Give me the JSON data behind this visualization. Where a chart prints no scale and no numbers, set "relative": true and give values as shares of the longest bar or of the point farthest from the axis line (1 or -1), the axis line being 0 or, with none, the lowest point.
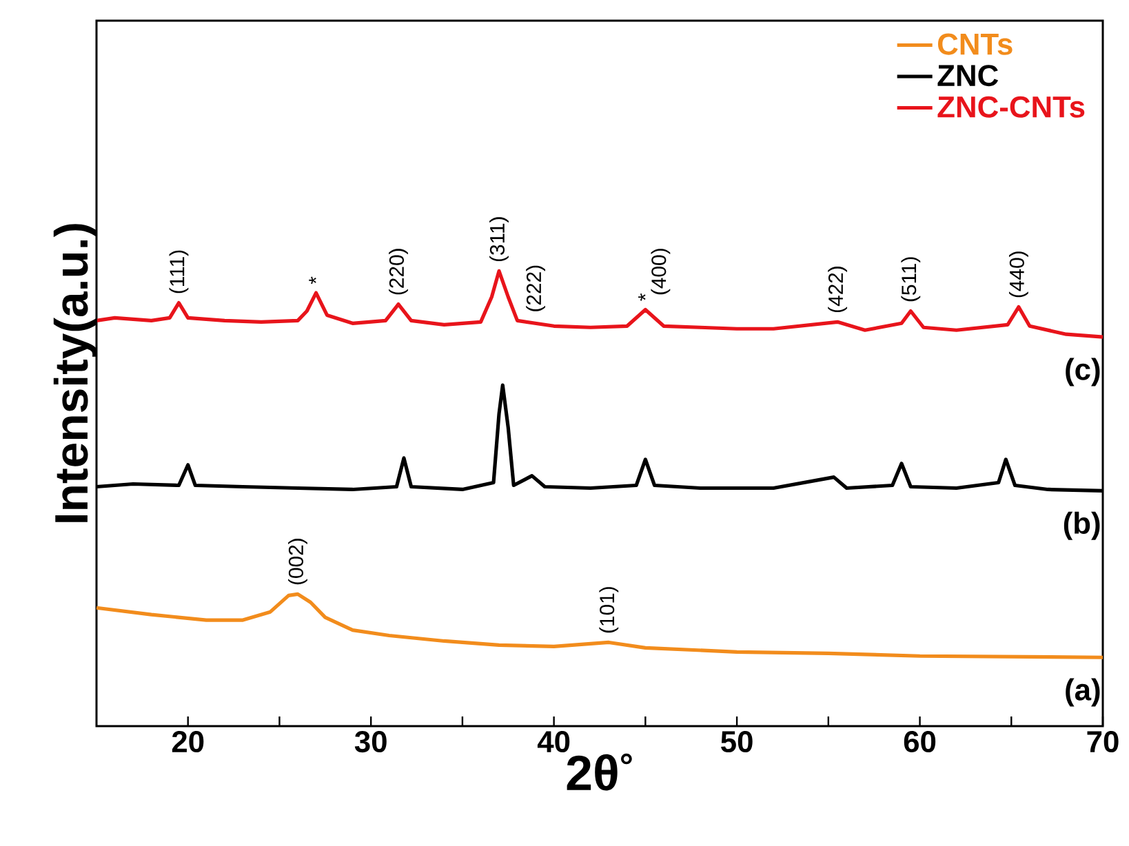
{
  "chart_data": {
    "type": "line",
    "relative": true,
    "xlabel": "2θ$^{°}$",
    "ylabel": "Intensity(a.u.)",
    "xlim": [
      15,
      70
    ],
    "xticks": [
      20,
      {
        "value": 25,
        "label": null
      },
      30,
      {
        "value": 35,
        "label": null
      },
      40,
      {
        "value": 45,
        "label": null
      },
      50,
      {
        "value": 55,
        "label": null
      },
      60,
      {
        "value": 65,
        "label": null
      },
      70
    ],
    "legend": "top right",
    "marker": "none",
    "line_style": "solid",
    "grid": false,
    "series": [
      {
        "name": "CNTs",
        "color": "#f28c1c",
        "x": [
          15,
          18,
          21,
          23,
          24.5,
          25.5,
          26,
          26.7,
          27.5,
          29,
          31,
          34,
          37,
          40,
          43,
          45,
          50,
          55,
          60,
          70
        ],
        "values": [
          0.26,
          0.245,
          0.233,
          0.233,
          0.251,
          0.287,
          0.29,
          0.272,
          0.239,
          0.211,
          0.199,
          0.187,
          0.178,
          0.175,
          0.184,
          0.172,
          0.163,
          0.16,
          0.154,
          0.151
        ]
      },
      {
        "name": "ZNC",
        "color": "#000000",
        "x": [
          15,
          17,
          19.5,
          20,
          20.4,
          23,
          26,
          29,
          31.4,
          31.8,
          32.2,
          35,
          36.7,
          37.0,
          37.2,
          37.5,
          37.8,
          38.8,
          39.5,
          42,
          44.5,
          45,
          45.5,
          48,
          52,
          55.3,
          56,
          58.5,
          59,
          59.5,
          62,
          64.3,
          64.7,
          65.2,
          67,
          70
        ],
        "values": [
          0.526,
          0.532,
          0.529,
          0.574,
          0.529,
          0.526,
          0.523,
          0.52,
          0.526,
          0.589,
          0.526,
          0.52,
          0.535,
          0.686,
          0.749,
          0.656,
          0.529,
          0.55,
          0.526,
          0.523,
          0.529,
          0.586,
          0.529,
          0.523,
          0.523,
          0.547,
          0.523,
          0.529,
          0.577,
          0.526,
          0.523,
          0.535,
          0.586,
          0.529,
          0.52,
          0.517
        ]
      },
      {
        "name": "ZNC-CNTs",
        "color": "#e8141b",
        "x": [
          15,
          16,
          18,
          19,
          19.5,
          20,
          22,
          24,
          26,
          26.5,
          27,
          27.6,
          29,
          30.8,
          31.5,
          32.2,
          34,
          36,
          36.6,
          37,
          37.5,
          38,
          40,
          42,
          44,
          45,
          46,
          48,
          50,
          52,
          55.5,
          57,
          59,
          59.5,
          60.2,
          62,
          64.8,
          65.4,
          66,
          68,
          70
        ],
        "values": [
          0.891,
          0.897,
          0.891,
          0.897,
          0.93,
          0.897,
          0.891,
          0.888,
          0.891,
          0.912,
          0.952,
          0.903,
          0.885,
          0.891,
          0.927,
          0.891,
          0.882,
          0.888,
          0.943,
          1.0,
          0.943,
          0.891,
          0.879,
          0.876,
          0.879,
          0.915,
          0.879,
          0.876,
          0.873,
          0.873,
          0.888,
          0.87,
          0.885,
          0.912,
          0.876,
          0.87,
          0.882,
          0.921,
          0.879,
          0.861,
          0.855
        ]
      }
    ],
    "annotations": [
      {
        "text": "(002)",
        "x": 26,
        "y": 0.29
      },
      {
        "text": "(101)",
        "x": 43,
        "y": 0.184
      },
      {
        "text": "(111)",
        "x": 19.5,
        "y": 0.93
      },
      {
        "text": "*",
        "x": 27,
        "y": 0.952
      },
      {
        "text": "(220)",
        "x": 31.5,
        "y": 0.927
      },
      {
        "text": "(311)",
        "x": 37,
        "y": 1.0
      },
      {
        "text": "(222)",
        "x": 39,
        "y": 0.89
      },
      {
        "text": "*",
        "x": 45,
        "y": 0.915
      },
      {
        "text": "(400)",
        "x": 45,
        "y": 0.915
      },
      {
        "text": "(422)",
        "x": 55.5,
        "y": 0.888
      },
      {
        "text": "(511)",
        "x": 59.5,
        "y": 0.912
      },
      {
        "text": "(440)",
        "x": 65.4,
        "y": 0.921
      },
      {
        "text": "(c)",
        "x": 70,
        "y": 0.855
      },
      {
        "text": "(b)",
        "x": 70,
        "y": 0.517
      },
      {
        "text": "(a)",
        "x": 70,
        "y": 0.151
      }
    ]
  }
}
